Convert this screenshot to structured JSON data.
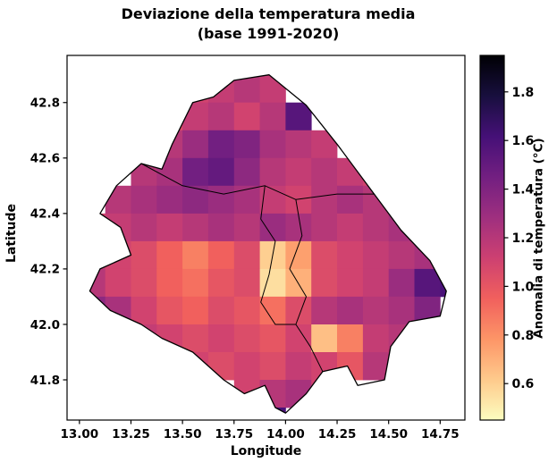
{
  "chart_data": {
    "type": "heatmap",
    "title": "Deviazione della temperatura media",
    "subtitle": "(base 1991-2020)",
    "xlabel": "Longitude",
    "ylabel": "Latitude",
    "colorbar_label": "Anomalia di temperatura (°C)",
    "xlim": [
      12.94,
      14.87
    ],
    "ylim": [
      41.655,
      42.97
    ],
    "xtick_labels": [
      "13.00",
      "13.25",
      "13.50",
      "13.75",
      "14.00",
      "14.25",
      "14.50",
      "14.75"
    ],
    "ytick_labels": [
      "41.8",
      "42.0",
      "42.2",
      "42.4",
      "42.6",
      "42.8"
    ],
    "colorbar_tick_labels": [
      "0.6",
      "0.8",
      "1.0",
      "1.2",
      "1.4",
      "1.6",
      "1.8"
    ],
    "value_range": [
      0.45,
      1.95
    ],
    "colormap": "magma_r",
    "colormap_stops": [
      "#000004",
      "#180f3e",
      "#451077",
      "#721f81",
      "#9f2f7f",
      "#cd4071",
      "#f1605d",
      "#fd9567",
      "#feca8c",
      "#fcfdbf"
    ],
    "grid": {
      "lon_edge_start": 13.0,
      "dlon": 0.125,
      "lat_edge_start": 42.9,
      "dlat": 0.1,
      "values": [
        [
          null,
          null,
          null,
          null,
          1.1,
          1.15,
          1.2,
          1.15,
          null,
          null,
          null,
          null,
          null,
          null,
          null
        ],
        [
          null,
          null,
          null,
          1.05,
          1.15,
          1.2,
          1.1,
          1.2,
          1.55,
          null,
          null,
          null,
          null,
          null,
          null
        ],
        [
          null,
          null,
          1.15,
          1.2,
          1.3,
          1.45,
          1.4,
          1.25,
          1.2,
          1.15,
          null,
          null,
          null,
          null,
          null
        ],
        [
          null,
          null,
          1.2,
          1.25,
          1.45,
          1.5,
          1.35,
          1.2,
          1.15,
          1.2,
          1.15,
          1.1,
          null,
          null,
          null
        ],
        [
          null,
          1.2,
          1.25,
          1.3,
          1.35,
          1.3,
          1.25,
          1.15,
          1.1,
          1.2,
          1.25,
          1.2,
          null,
          null,
          null
        ],
        [
          1.1,
          1.15,
          1.2,
          1.15,
          1.2,
          1.25,
          1.2,
          1.3,
          1.25,
          1.2,
          1.15,
          1.2,
          1.25,
          null,
          null
        ],
        [
          1.15,
          1.1,
          1.05,
          0.95,
          0.85,
          0.95,
          1.05,
          0.6,
          0.75,
          1.05,
          1.1,
          1.15,
          1.2,
          1.25,
          null
        ],
        [
          1.2,
          1.1,
          1.05,
          0.95,
          0.9,
          1.0,
          1.05,
          0.55,
          0.7,
          1.05,
          1.1,
          1.15,
          1.3,
          1.55,
          1.6
        ],
        [
          1.35,
          1.25,
          1.1,
          1.0,
          0.95,
          1.05,
          1.0,
          0.9,
          1.05,
          1.2,
          1.25,
          1.2,
          1.25,
          1.4,
          null
        ],
        [
          null,
          null,
          1.15,
          1.1,
          1.05,
          1.1,
          1.05,
          1.0,
          1.1,
          0.65,
          0.85,
          1.15,
          1.2,
          null,
          null
        ],
        [
          null,
          null,
          null,
          null,
          1.1,
          1.05,
          1.1,
          1.05,
          1.15,
          1.1,
          1.0,
          1.2,
          null,
          null,
          null
        ],
        [
          null,
          null,
          null,
          null,
          null,
          null,
          1.1,
          1.2,
          1.25,
          1.1,
          null,
          null,
          null,
          null,
          null
        ],
        [
          null,
          null,
          null,
          null,
          null,
          null,
          null,
          1.6,
          null,
          null,
          null,
          null,
          null,
          null,
          null
        ]
      ]
    },
    "region_outline": [
      [
        13.92,
        42.9
      ],
      [
        14.1,
        42.79
      ],
      [
        14.25,
        42.65
      ],
      [
        14.43,
        42.47
      ],
      [
        14.56,
        42.34
      ],
      [
        14.7,
        42.23
      ],
      [
        14.78,
        42.12
      ],
      [
        14.75,
        42.03
      ],
      [
        14.6,
        42.01
      ],
      [
        14.51,
        41.92
      ],
      [
        14.48,
        41.8
      ],
      [
        14.35,
        41.78
      ],
      [
        14.3,
        41.85
      ],
      [
        14.18,
        41.83
      ],
      [
        14.1,
        41.75
      ],
      [
        14.0,
        41.68
      ],
      [
        13.95,
        41.7
      ],
      [
        13.9,
        41.78
      ],
      [
        13.8,
        41.75
      ],
      [
        13.7,
        41.8
      ],
      [
        13.55,
        41.9
      ],
      [
        13.4,
        41.95
      ],
      [
        13.3,
        42.0
      ],
      [
        13.15,
        42.05
      ],
      [
        13.05,
        42.12
      ],
      [
        13.1,
        42.2
      ],
      [
        13.25,
        42.25
      ],
      [
        13.2,
        42.35
      ],
      [
        13.1,
        42.4
      ],
      [
        13.18,
        42.5
      ],
      [
        13.3,
        42.58
      ],
      [
        13.4,
        42.56
      ],
      [
        13.45,
        42.65
      ],
      [
        13.55,
        42.8
      ],
      [
        13.65,
        42.82
      ],
      [
        13.75,
        42.88
      ]
    ],
    "interior_boundaries": [
      [
        [
          13.3,
          42.58
        ],
        [
          13.5,
          42.5
        ],
        [
          13.7,
          42.47
        ],
        [
          13.9,
          42.5
        ],
        [
          14.05,
          42.45
        ],
        [
          14.25,
          42.47
        ],
        [
          14.43,
          42.47
        ]
      ],
      [
        [
          14.05,
          42.45
        ],
        [
          14.08,
          42.32
        ],
        [
          14.02,
          42.2
        ],
        [
          14.1,
          42.1
        ],
        [
          14.05,
          42.0
        ],
        [
          14.12,
          41.92
        ],
        [
          14.18,
          41.83
        ]
      ],
      [
        [
          13.9,
          42.5
        ],
        [
          13.88,
          42.38
        ],
        [
          13.95,
          42.3
        ],
        [
          13.92,
          42.18
        ],
        [
          13.88,
          42.08
        ],
        [
          13.95,
          42.0
        ],
        [
          14.05,
          42.0
        ]
      ]
    ]
  }
}
